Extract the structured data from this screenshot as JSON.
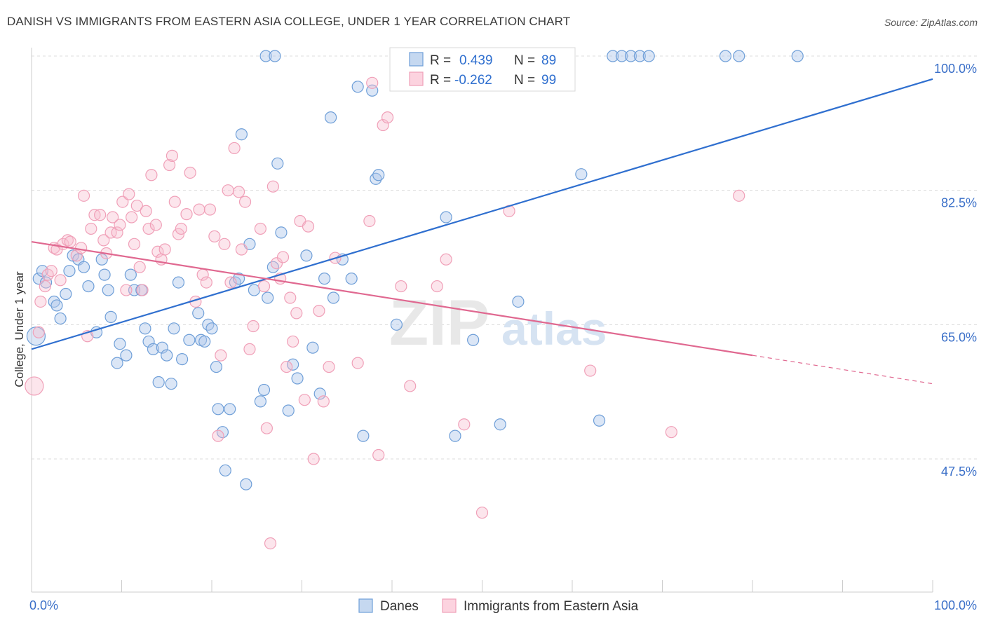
{
  "title": "DANISH VS IMMIGRANTS FROM EASTERN ASIA COLLEGE, UNDER 1 YEAR CORRELATION CHART",
  "source": "Source: ZipAtlas.com",
  "colors": {
    "danes": "#6f9fd8",
    "danes_line": "#2f6fcf",
    "imm": "#f0a0b8",
    "imm_line": "#e06890",
    "axis_label": "#3a6fc8"
  },
  "legend_box": [
    {
      "r_label": "R =",
      "r_value": "0.439",
      "n_label": "N =",
      "n_value": "89"
    },
    {
      "r_label": "R =",
      "r_value": "-0.262",
      "n_label": "N =",
      "n_value": "99"
    }
  ],
  "chart_data": {
    "type": "scatter",
    "xlabel": "",
    "ylabel": "College, Under 1 year",
    "xlim": [
      0,
      100
    ],
    "ylim": [
      30,
      103
    ],
    "x_tick_labels": [
      "0.0%",
      "100.0%"
    ],
    "y_tick_labels": [
      "100.0%",
      "82.5%",
      "65.0%",
      "47.5%"
    ],
    "y_tick_values": [
      100,
      82.5,
      65,
      47.5
    ],
    "grid": true,
    "legend_position": "bottom",
    "series": [
      {
        "name": "Danes",
        "color": "#6f9fd8",
        "trend": {
          "x": [
            0,
            100
          ],
          "y": [
            61.8,
            97.0
          ]
        },
        "points": [
          [
            0.5,
            63.5
          ],
          [
            0.8,
            71
          ],
          [
            1.2,
            72
          ],
          [
            1.6,
            70.5
          ],
          [
            2.5,
            68
          ],
          [
            2.8,
            67.5
          ],
          [
            3.2,
            65.8
          ],
          [
            3.8,
            69
          ],
          [
            4.2,
            72
          ],
          [
            4.6,
            74
          ],
          [
            5.2,
            73.5
          ],
          [
            5.8,
            72.5
          ],
          [
            6.3,
            70
          ],
          [
            7.2,
            64
          ],
          [
            7.8,
            73.5
          ],
          [
            8.1,
            71.5
          ],
          [
            8.5,
            69.5
          ],
          [
            8.8,
            66
          ],
          [
            9.5,
            60
          ],
          [
            9.8,
            62.5
          ],
          [
            10.5,
            61
          ],
          [
            11,
            71.5
          ],
          [
            11.4,
            69.5
          ],
          [
            12.2,
            69.5
          ],
          [
            12.6,
            64.5
          ],
          [
            13,
            62.8
          ],
          [
            13.5,
            61.8
          ],
          [
            14.1,
            57.5
          ],
          [
            14.5,
            62
          ],
          [
            15,
            61
          ],
          [
            15.5,
            57.3
          ],
          [
            15.8,
            64.5
          ],
          [
            16.3,
            70.5
          ],
          [
            16.7,
            60.5
          ],
          [
            17.5,
            63
          ],
          [
            18.5,
            66.5
          ],
          [
            18.8,
            63
          ],
          [
            19.2,
            62.8
          ],
          [
            19.6,
            65
          ],
          [
            20,
            64.5
          ],
          [
            20.5,
            59.5
          ],
          [
            20.7,
            54
          ],
          [
            21.2,
            51
          ],
          [
            21.5,
            46
          ],
          [
            22,
            54
          ],
          [
            22.6,
            70.5
          ],
          [
            23,
            71
          ],
          [
            23.3,
            89.8
          ],
          [
            23.8,
            44.2
          ],
          [
            24.2,
            75.5
          ],
          [
            24.7,
            69.5
          ],
          [
            25.4,
            55
          ],
          [
            25.8,
            56.5
          ],
          [
            26.2,
            68.5
          ],
          [
            26.8,
            72.5
          ],
          [
            27.3,
            86
          ],
          [
            27.7,
            77
          ],
          [
            28.5,
            53.8
          ],
          [
            29,
            59.8
          ],
          [
            29.5,
            58
          ],
          [
            30.5,
            74
          ],
          [
            31.2,
            62
          ],
          [
            32,
            56
          ],
          [
            32.5,
            71
          ],
          [
            33.2,
            92
          ],
          [
            33.5,
            68.5
          ],
          [
            34.5,
            73.5
          ],
          [
            35.5,
            71
          ],
          [
            36.2,
            96
          ],
          [
            36.8,
            50.5
          ],
          [
            37.8,
            95.5
          ],
          [
            38.2,
            84
          ],
          [
            38.5,
            84.5
          ],
          [
            40.5,
            65
          ],
          [
            46,
            79
          ],
          [
            47,
            50.5
          ],
          [
            49,
            63
          ],
          [
            52,
            52
          ],
          [
            54,
            68
          ],
          [
            61,
            84.6
          ],
          [
            63,
            52.5
          ],
          [
            64.5,
            100
          ],
          [
            65.5,
            100
          ],
          [
            66.5,
            100
          ],
          [
            67.5,
            100
          ],
          [
            68.5,
            100
          ],
          [
            77,
            100
          ],
          [
            78.5,
            100
          ],
          [
            85,
            100
          ],
          [
            26,
            100
          ],
          [
            27,
            100
          ],
          [
            46,
            100
          ]
        ]
      },
      {
        "name": "Immigrants from Eastern Asia",
        "color": "#f0a0b8",
        "trend": {
          "x": [
            0,
            80
          ],
          "y": [
            75.8,
            61.0
          ]
        },
        "trend_dash": {
          "x": [
            80,
            100
          ],
          "y": [
            61.0,
            57.3
          ]
        },
        "points": [
          [
            0.3,
            57
          ],
          [
            0.8,
            64
          ],
          [
            1,
            68
          ],
          [
            1.5,
            70
          ],
          [
            1.8,
            71.5
          ],
          [
            2.2,
            72
          ],
          [
            2.5,
            75
          ],
          [
            2.8,
            74.8
          ],
          [
            3.2,
            70.8
          ],
          [
            3.5,
            75.5
          ],
          [
            4,
            76
          ],
          [
            4.3,
            75.8
          ],
          [
            5,
            74
          ],
          [
            5.5,
            75
          ],
          [
            5.8,
            81.8
          ],
          [
            6.2,
            63.5
          ],
          [
            6.6,
            77.5
          ],
          [
            7,
            79.3
          ],
          [
            7.6,
            79.3
          ],
          [
            8,
            76
          ],
          [
            8.3,
            74.3
          ],
          [
            8.8,
            77
          ],
          [
            9,
            79
          ],
          [
            9.5,
            77
          ],
          [
            9.8,
            78
          ],
          [
            10.1,
            81
          ],
          [
            10.5,
            69.5
          ],
          [
            10.8,
            82
          ],
          [
            11.1,
            79
          ],
          [
            11.4,
            75.5
          ],
          [
            11.7,
            80.5
          ],
          [
            12,
            72.5
          ],
          [
            12.3,
            69.5
          ],
          [
            12.7,
            79.8
          ],
          [
            13,
            77.5
          ],
          [
            13.3,
            84.5
          ],
          [
            13.8,
            78
          ],
          [
            14,
            74.5
          ],
          [
            14.4,
            73.5
          ],
          [
            14.8,
            74.8
          ],
          [
            15.3,
            85.8
          ],
          [
            15.6,
            87
          ],
          [
            15.9,
            81
          ],
          [
            16.3,
            76.8
          ],
          [
            16.6,
            77.5
          ],
          [
            17.2,
            79.4
          ],
          [
            17.6,
            84.8
          ],
          [
            18.2,
            68
          ],
          [
            18.6,
            80
          ],
          [
            19,
            71.5
          ],
          [
            19.4,
            70.5
          ],
          [
            19.8,
            80
          ],
          [
            20.3,
            76.5
          ],
          [
            20.7,
            50.5
          ],
          [
            21,
            61
          ],
          [
            21.4,
            75.5
          ],
          [
            21.8,
            82.5
          ],
          [
            22.1,
            70.5
          ],
          [
            22.5,
            88
          ],
          [
            23,
            82.3
          ],
          [
            23.3,
            74.8
          ],
          [
            23.7,
            81
          ],
          [
            24.2,
            61.8
          ],
          [
            24.6,
            64.8
          ],
          [
            25.4,
            77.5
          ],
          [
            25.8,
            70
          ],
          [
            26.1,
            51.5
          ],
          [
            26.5,
            36.5
          ],
          [
            26.8,
            83
          ],
          [
            27.2,
            73
          ],
          [
            27.6,
            71
          ],
          [
            27.9,
            73.8
          ],
          [
            28.3,
            59.5
          ],
          [
            28.7,
            68.5
          ],
          [
            29,
            62.8
          ],
          [
            29.4,
            66.5
          ],
          [
            29.8,
            78.5
          ],
          [
            30.3,
            55.2
          ],
          [
            30.7,
            77.8
          ],
          [
            31.3,
            47.5
          ],
          [
            31.9,
            66.8
          ],
          [
            32.4,
            55
          ],
          [
            33,
            59.5
          ],
          [
            33.7,
            73.7
          ],
          [
            36.2,
            60
          ],
          [
            37.5,
            78.5
          ],
          [
            38.5,
            48
          ],
          [
            39,
            91
          ],
          [
            39.5,
            92
          ],
          [
            41,
            70
          ],
          [
            42,
            57
          ],
          [
            45,
            70
          ],
          [
            46,
            73.5
          ],
          [
            48,
            52
          ],
          [
            50,
            40.5
          ],
          [
            53,
            79.8
          ],
          [
            62,
            59
          ],
          [
            71,
            51
          ],
          [
            78.5,
            81.8
          ],
          [
            37.8,
            96.5
          ]
        ]
      }
    ]
  },
  "bottom_legend": [
    {
      "label": "Danes"
    },
    {
      "label": "Immigrants from Eastern Asia"
    }
  ],
  "watermark": {
    "zip": "ZIP",
    "atlas": "atlas"
  }
}
